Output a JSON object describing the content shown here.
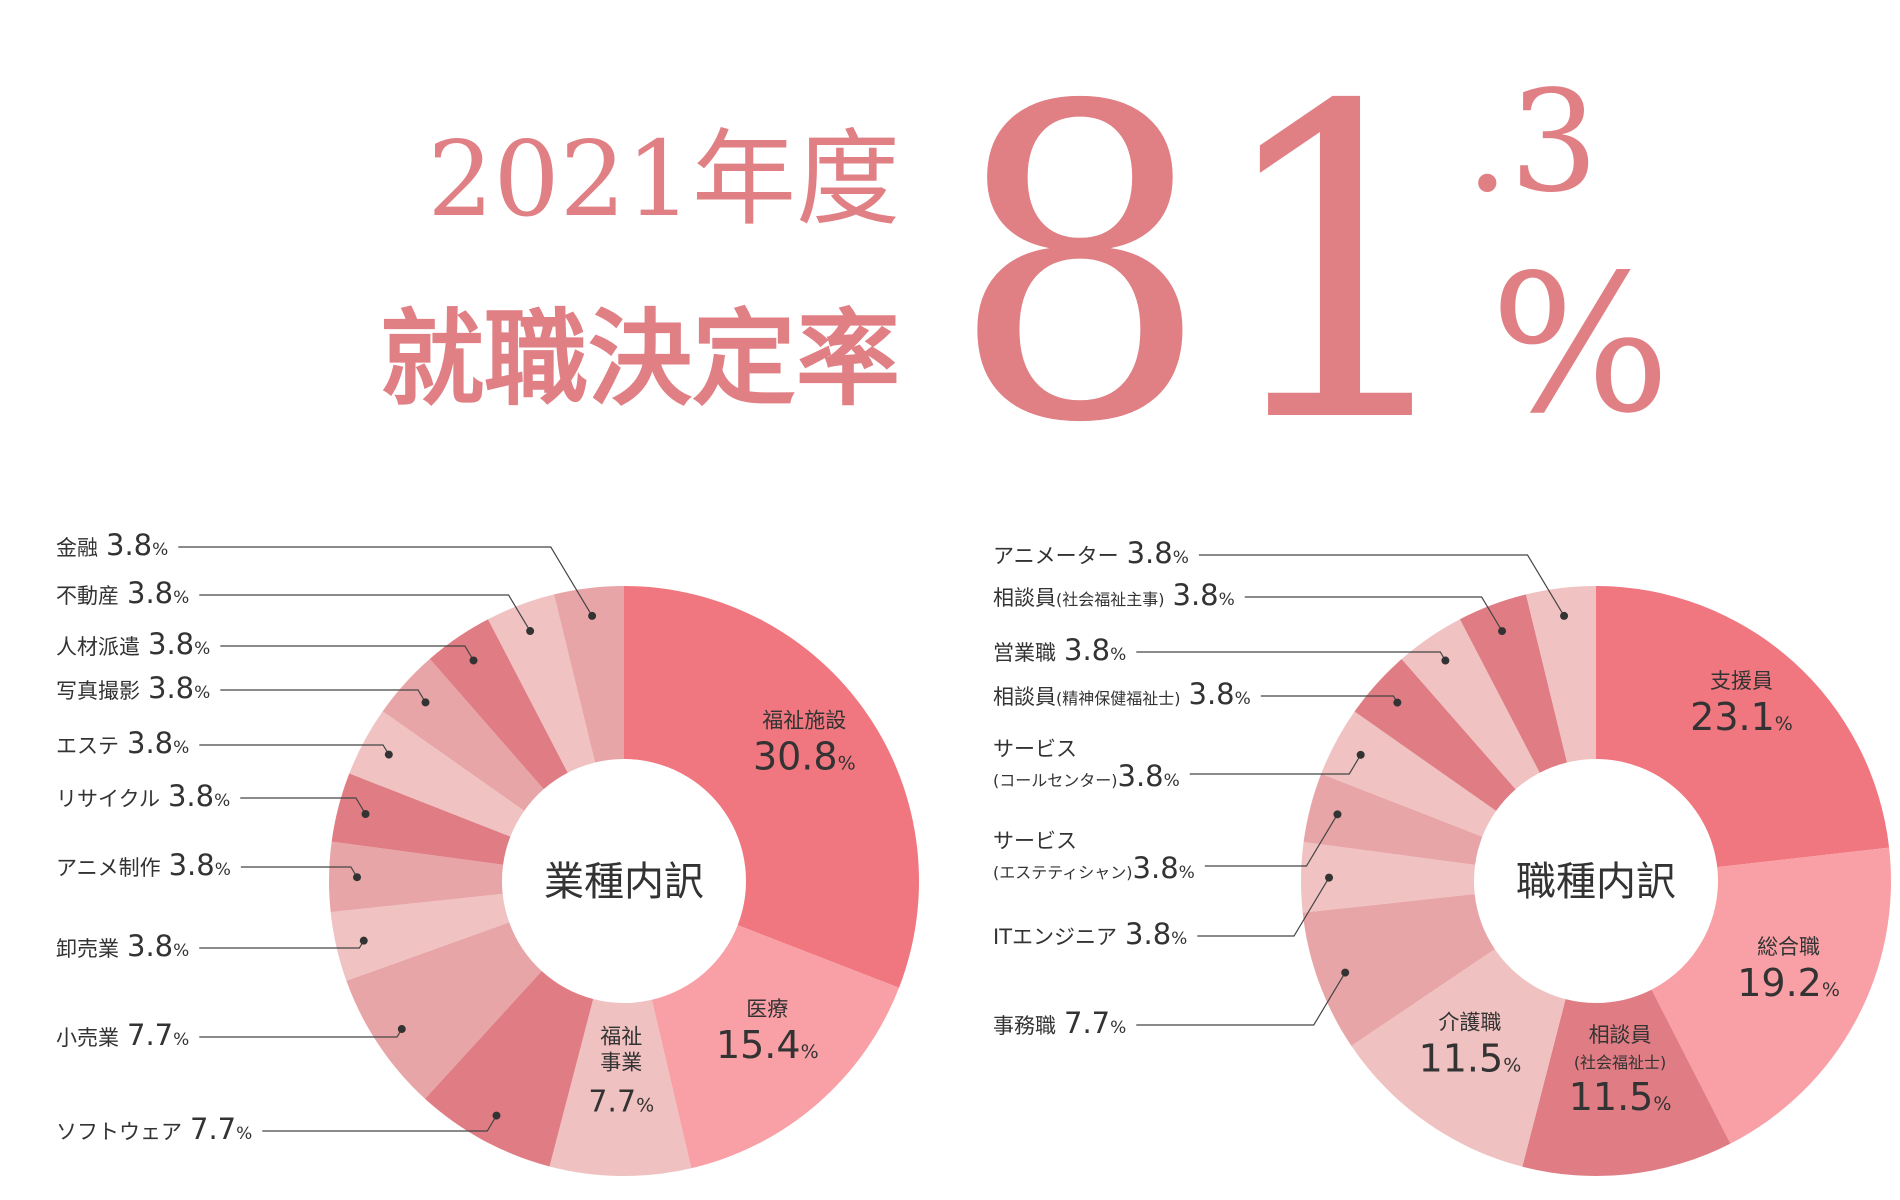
{
  "header": {
    "year": "2021年度",
    "label": "就職決定率",
    "rate_integer": "81",
    "rate_decimal": ".3",
    "rate_unit": "%"
  },
  "chart_data": [
    {
      "type": "pie",
      "center_label": "業種内訳",
      "unit": "%",
      "categories": [
        "福祉施設",
        "医療",
        "福祉事業",
        "ソフトウェア",
        "小売業",
        "卸売業",
        "アニメ制作",
        "リサイクル",
        "エステ",
        "写真撮影",
        "人材派遣",
        "不動産",
        "金融"
      ],
      "values": [
        30.8,
        15.4,
        7.7,
        7.7,
        7.7,
        3.8,
        3.8,
        3.8,
        3.8,
        3.8,
        3.8,
        3.8,
        3.8
      ],
      "colors": [
        "#f0777f",
        "#f9a0a6",
        "#f0c1c1",
        "#e07d84",
        "#e8a5a7",
        "#f0c2c2",
        "#e8a5a7",
        "#e07d84",
        "#f0c2c2",
        "#e8a5a7",
        "#e07d84",
        "#f0c2c2",
        "#e8a5a7"
      ]
    },
    {
      "type": "pie",
      "center_label": "職種内訳",
      "unit": "%",
      "categories": [
        "支援員",
        "総合職",
        "相談員(社会福祉士)",
        "介護職",
        "事務職",
        "ITエンジニア",
        "サービス(エステティシャン)",
        "サービス(コールセンター)",
        "相談員(精神保健福祉士)",
        "営業職",
        "相談員(社会福祉主事)",
        "アニメーター"
      ],
      "values": [
        23.1,
        19.2,
        11.5,
        11.5,
        7.7,
        3.8,
        3.8,
        3.8,
        3.8,
        3.8,
        3.8,
        3.8
      ],
      "colors": [
        "#f0777f",
        "#f9a0a6",
        "#e07d84",
        "#f0c1c1",
        "#e8a5a7",
        "#f0c2c2",
        "#e8a5a7",
        "#f0c2c2",
        "#e07d84",
        "#f0c2c2",
        "#e07d84",
        "#f0c2c2"
      ]
    }
  ]
}
